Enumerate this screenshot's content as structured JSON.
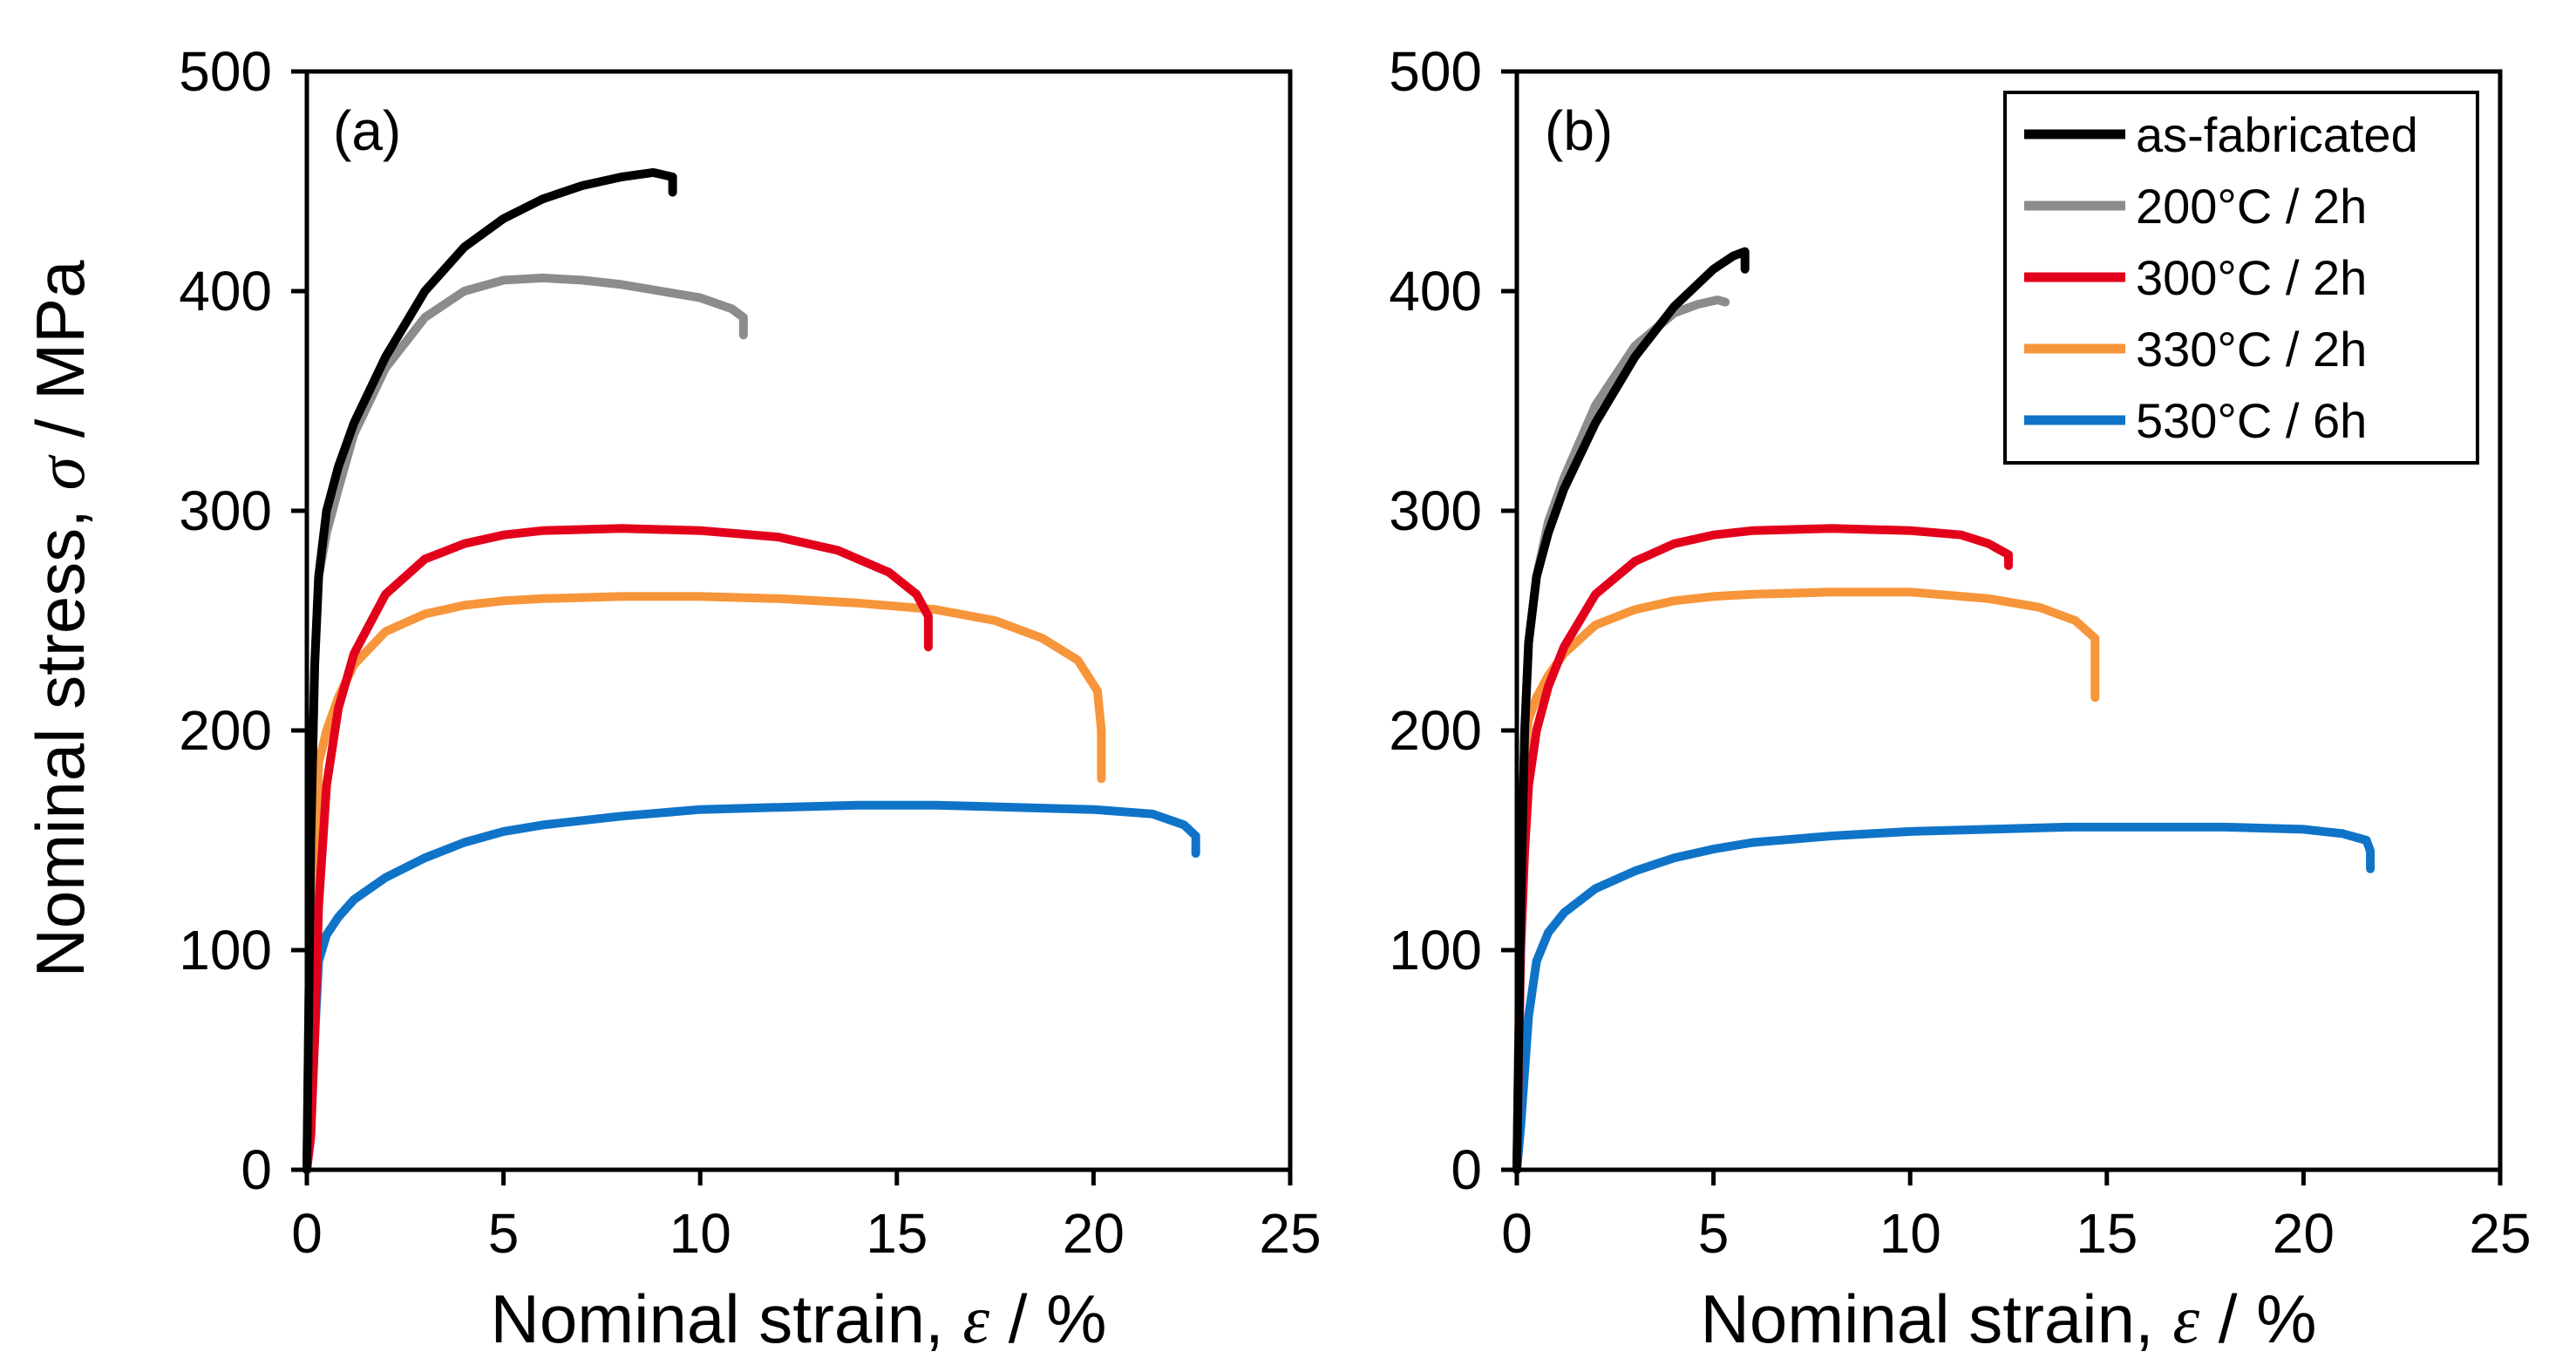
{
  "figure": {
    "y_axis_title": {
      "prefix": "Nominal stress, ",
      "symbol": "σ",
      "suffix": " / MPa"
    },
    "x_axis_title": {
      "prefix": "Nominal strain, ",
      "symbol": "ε",
      "suffix": " / %"
    }
  },
  "colors": {
    "as-fabricated": "#000000",
    "200°C / 2h": "#8c8c8c",
    "300°C / 2h": "#e3001b",
    "330°C / 2h": "#f7953a",
    "530°C / 6h": "#0f74c8"
  },
  "chart_data": [
    {
      "type": "line",
      "panel_label": "(a)",
      "xlabel": "Nominal strain, ε / %",
      "ylabel": "Nominal stress, σ / MPa",
      "xlim": [
        0,
        25
      ],
      "ylim": [
        0,
        500
      ],
      "x_ticks": [
        0,
        5,
        10,
        15,
        20,
        25
      ],
      "y_ticks": [
        0,
        100,
        200,
        300,
        400,
        500
      ],
      "legend": null,
      "series": [
        {
          "name": "as-fabricated",
          "x": [
            0,
            0.1,
            0.2,
            0.3,
            0.5,
            0.8,
            1.2,
            2,
            3,
            4,
            5,
            6,
            7,
            8,
            8.8,
            9.3,
            9.3
          ],
          "y": [
            0,
            150,
            230,
            270,
            300,
            320,
            340,
            370,
            400,
            420,
            433,
            442,
            448,
            452,
            454,
            452,
            445
          ]
        },
        {
          "name": "200°C / 2h",
          "x": [
            0,
            0.1,
            0.2,
            0.3,
            0.5,
            0.8,
            1.2,
            2,
            3,
            4,
            5,
            6,
            7,
            8,
            9,
            10,
            10.8,
            11.1,
            11.1
          ],
          "y": [
            0,
            150,
            230,
            270,
            290,
            310,
            335,
            365,
            388,
            400,
            405,
            406,
            405,
            403,
            400,
            397,
            392,
            388,
            380
          ]
        },
        {
          "name": "300°C / 2h",
          "x": [
            0,
            0.1,
            0.2,
            0.3,
            0.5,
            0.8,
            1.2,
            2,
            3,
            4,
            5,
            6,
            8,
            10,
            12,
            13.5,
            14.8,
            15.5,
            15.8,
            15.8
          ],
          "y": [
            0,
            15,
            60,
            120,
            175,
            210,
            235,
            262,
            278,
            285,
            289,
            291,
            292,
            291,
            288,
            282,
            272,
            262,
            252,
            238
          ]
        },
        {
          "name": "330°C / 2h",
          "x": [
            0,
            0.1,
            0.2,
            0.3,
            0.5,
            0.8,
            1.2,
            2,
            3,
            4,
            5,
            6,
            8,
            10,
            12,
            14,
            16,
            17.5,
            18.7,
            19.6,
            20.1,
            20.2,
            20.2
          ],
          "y": [
            0,
            60,
            140,
            185,
            200,
            215,
            230,
            245,
            253,
            257,
            259,
            260,
            261,
            261,
            260,
            258,
            255,
            250,
            242,
            232,
            218,
            200,
            178
          ]
        },
        {
          "name": "530°C / 6h",
          "x": [
            0,
            0.1,
            0.2,
            0.3,
            0.5,
            0.8,
            1.2,
            2,
            3,
            4,
            5,
            6,
            8,
            10,
            12,
            14,
            16,
            18,
            20,
            21.5,
            22.3,
            22.6,
            22.6
          ],
          "y": [
            0,
            20,
            60,
            95,
            107,
            115,
            123,
            133,
            142,
            149,
            154,
            157,
            161,
            164,
            165,
            166,
            166,
            165,
            164,
            162,
            157,
            152,
            144
          ]
        }
      ]
    },
    {
      "type": "line",
      "panel_label": "(b)",
      "xlabel": "Nominal strain, ε / %",
      "ylabel": "",
      "xlim": [
        0,
        25
      ],
      "ylim": [
        0,
        500
      ],
      "x_ticks": [
        0,
        5,
        10,
        15,
        20,
        25
      ],
      "y_ticks": [
        0,
        100,
        200,
        300,
        400,
        500
      ],
      "legend": "top-right",
      "series": [
        {
          "name": "as-fabricated",
          "x": [
            0,
            0.1,
            0.2,
            0.3,
            0.5,
            0.8,
            1.2,
            2,
            3,
            4,
            5,
            5.5,
            5.8,
            5.8
          ],
          "y": [
            0,
            120,
            200,
            240,
            270,
            290,
            310,
            340,
            370,
            393,
            410,
            416,
            418,
            410
          ]
        },
        {
          "name": "200°C / 2h",
          "x": [
            0,
            0.1,
            0.2,
            0.3,
            0.5,
            0.8,
            1.2,
            2,
            3,
            4,
            4.6,
            5.1,
            5.3
          ],
          "y": [
            0,
            120,
            200,
            240,
            270,
            295,
            315,
            348,
            375,
            390,
            394,
            396,
            395
          ]
        },
        {
          "name": "300°C / 2h",
          "x": [
            0,
            0.1,
            0.2,
            0.3,
            0.5,
            0.8,
            1.2,
            2,
            3,
            4,
            5,
            6,
            8,
            10,
            11.3,
            12,
            12.5,
            12.5
          ],
          "y": [
            0,
            100,
            145,
            175,
            200,
            220,
            238,
            262,
            277,
            285,
            289,
            291,
            292,
            291,
            289,
            285,
            280,
            275
          ]
        },
        {
          "name": "330°C / 2h",
          "x": [
            0,
            0.1,
            0.2,
            0.3,
            0.5,
            0.8,
            1.2,
            2,
            3,
            4,
            5,
            6,
            8,
            10,
            12,
            13.3,
            14.2,
            14.7,
            14.7
          ],
          "y": [
            0,
            140,
            190,
            205,
            215,
            225,
            235,
            248,
            255,
            259,
            261,
            262,
            263,
            263,
            260,
            256,
            250,
            242,
            215
          ]
        },
        {
          "name": "530°C / 6h",
          "x": [
            0,
            0.05,
            0.1,
            0.2,
            0.3,
            0.5,
            0.8,
            1.2,
            2,
            3,
            4,
            5,
            6,
            8,
            10,
            12,
            14,
            16,
            18,
            20,
            21,
            21.6,
            21.7,
            21.7
          ],
          "y": [
            0,
            10,
            20,
            45,
            70,
            95,
            108,
            117,
            128,
            136,
            142,
            146,
            149,
            152,
            154,
            155,
            156,
            156,
            156,
            155,
            153,
            150,
            145,
            137
          ]
        }
      ]
    }
  ]
}
